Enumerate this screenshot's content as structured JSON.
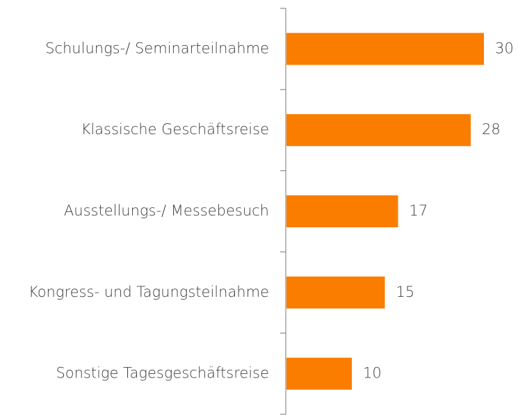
{
  "chart_data": {
    "type": "bar",
    "orientation": "horizontal",
    "categories": [
      "Schulungs-/ Seminarteilnahme",
      "Klassische Geschäftsreise",
      "Ausstellungs-/ Messebesuch",
      "Kongress- und Tagungsteilnahme",
      "Sonstige Tagesgeschäftsreise"
    ],
    "values": [
      30,
      28,
      17,
      15,
      10
    ],
    "color": "#fa7d00"
  }
}
